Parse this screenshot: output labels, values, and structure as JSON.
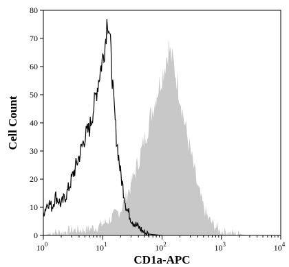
{
  "chart_data": {
    "type": "area",
    "title": "",
    "xlabel": "CD1a-APC",
    "ylabel": "Cell Count",
    "xscale": "log",
    "xlim": [
      1,
      10000
    ],
    "ylim": [
      0,
      80
    ],
    "yticks": [
      0,
      10,
      20,
      30,
      40,
      50,
      60,
      70,
      80
    ],
    "xticks": [
      {
        "value": 1,
        "base": "10",
        "exp": "0"
      },
      {
        "value": 10,
        "base": "10",
        "exp": "1"
      },
      {
        "value": 100,
        "base": "10",
        "exp": "2"
      },
      {
        "value": 1000,
        "base": "10",
        "exp": "3"
      },
      {
        "value": 10000,
        "base": "10",
        "exp": "4"
      }
    ],
    "grid": false,
    "legend": "none",
    "series": [
      {
        "style": "filled-gray",
        "color": "#c8c8c8",
        "x": [
          1,
          1.5,
          2,
          3,
          5,
          8,
          12,
          20,
          30,
          45,
          60,
          80,
          100,
          115,
          130,
          145,
          160,
          180,
          200,
          240,
          300,
          400,
          500,
          600,
          800,
          1000,
          1500,
          2000,
          3000
        ],
        "y": [
          0,
          1,
          1,
          2,
          2,
          3,
          5,
          9,
          18,
          30,
          40,
          50,
          57,
          62,
          67,
          63,
          60,
          55,
          50,
          40,
          30,
          17,
          10,
          6,
          3,
          1.5,
          0.8,
          0.5,
          0
        ]
      },
      {
        "style": "black-outline",
        "color": "#000000",
        "x": [
          1,
          1.2,
          1.4,
          1.6,
          2,
          2.5,
          3,
          4,
          5,
          6,
          7,
          8,
          9,
          10,
          11,
          12,
          13,
          14,
          15,
          17,
          20,
          25,
          30,
          35,
          40,
          50,
          60,
          80,
          100
        ],
        "y": [
          8,
          12,
          10,
          14,
          11,
          15,
          20,
          28,
          35,
          38,
          45,
          52,
          58,
          63,
          68,
          78,
          72,
          62,
          50,
          35,
          22,
          10,
          6,
          4,
          3,
          1,
          0.5,
          0.2,
          0
        ]
      }
    ]
  }
}
